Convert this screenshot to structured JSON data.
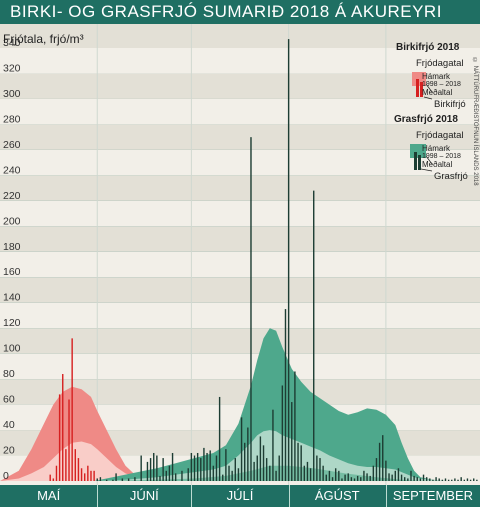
{
  "title": "BIRKI- OG GRASFRJÓ SUMARIÐ 2018 Á AKUREYRI",
  "copyright": "© NÁTTÚRUFRÆÐISTOFNUN ÍSLANDS 2018",
  "colors": {
    "birch": "#ef8a86",
    "birch_bar": "#d62020",
    "grass": "#4ea88c",
    "grass_bar": "#1d3d33",
    "band_light": "#f2efe8",
    "band_dark": "#e3e0d6",
    "frame": "#1f6f63"
  },
  "months": [
    "MAÍ",
    "JÚNÍ",
    "JÚLÍ",
    "ÁGÚST",
    "SEPTEMBER"
  ],
  "legend": {
    "birch_title": "Birkifrjó 2018",
    "birch_subtitle": "Frjódagatal",
    "birch_max": "Hámark",
    "birch_years": "1998 – 2018",
    "birch_mean": "Meðaltal",
    "birch_series": "Birkifrjó",
    "grass_title": "Grasfrjó 2018",
    "grass_subtitle": "Frjódagatal",
    "grass_max": "Hámark",
    "grass_years": "1998 – 2018",
    "grass_mean": "Meðaltal",
    "grass_series": "Grasfrjó"
  },
  "chart_data": {
    "type": "bar",
    "ylabel": "Frjótala, frjó/m³",
    "ylim": [
      0,
      350
    ],
    "yticks": [
      0,
      20,
      40,
      60,
      80,
      100,
      120,
      140,
      160,
      180,
      200,
      220,
      240,
      260,
      280,
      300,
      320,
      340
    ],
    "x_days": [
      0,
      153
    ],
    "month_starts": [
      0,
      31,
      61,
      92,
      123,
      153
    ],
    "birch_calendar": {
      "max_days": [
        0,
        6,
        10,
        14,
        17,
        20,
        23,
        26,
        29,
        31,
        34,
        37,
        40,
        43,
        46,
        49,
        52
      ],
      "max": [
        0,
        8,
        25,
        45,
        60,
        70,
        74,
        72,
        66,
        55,
        40,
        25,
        12,
        5,
        2,
        1,
        0
      ],
      "mean_days": [
        0,
        6,
        10,
        14,
        17,
        20,
        23,
        26,
        29,
        31,
        34,
        37,
        40,
        43,
        46,
        49,
        52
      ],
      "mean": [
        0,
        2,
        6,
        11,
        18,
        25,
        30,
        31,
        29,
        25,
        18,
        11,
        6,
        3,
        1,
        0,
        0
      ]
    },
    "grass_calendar": {
      "max_days": [
        30,
        40,
        50,
        56,
        62,
        68,
        72,
        76,
        80,
        82,
        84,
        86,
        88,
        90,
        93,
        96,
        99,
        102,
        105,
        108,
        111,
        114,
        117,
        120,
        123,
        126,
        128,
        130,
        132,
        134,
        138,
        142
      ],
      "max": [
        0,
        5,
        10,
        14,
        18,
        22,
        28,
        45,
        75,
        95,
        112,
        120,
        118,
        105,
        88,
        78,
        70,
        65,
        60,
        55,
        52,
        54,
        57,
        56,
        52,
        44,
        30,
        18,
        8,
        3,
        1,
        0
      ],
      "mean_days": [
        30,
        40,
        50,
        56,
        62,
        68,
        72,
        76,
        80,
        82,
        84,
        86,
        88,
        90,
        93,
        96,
        99,
        102,
        105,
        108,
        111,
        114,
        117,
        120,
        123,
        126,
        128,
        130,
        132,
        134,
        138,
        142
      ],
      "mean": [
        0,
        1,
        3,
        5,
        7,
        9,
        12,
        20,
        30,
        36,
        39,
        40,
        39,
        36,
        33,
        30,
        27,
        24,
        20,
        17,
        14,
        12,
        11,
        11,
        10,
        9,
        7,
        5,
        3,
        2,
        1,
        0
      ],
      "min_band_days": [
        30,
        50,
        62,
        72,
        80,
        86,
        92,
        100,
        110,
        120,
        128,
        134,
        142
      ],
      "min_band": [
        0,
        1,
        2,
        4,
        8,
        12,
        12,
        10,
        6,
        3,
        1,
        0,
        0
      ]
    },
    "series": [
      {
        "name": "Birkifrjó",
        "days": [
          16,
          17,
          18,
          19,
          20,
          21,
          22,
          23,
          24,
          25,
          26,
          27,
          28,
          29,
          30
        ],
        "values": [
          5,
          2,
          12,
          68,
          84,
          25,
          64,
          112,
          25,
          18,
          10,
          6,
          12,
          8,
          8
        ]
      },
      {
        "name": "Grasfrjó",
        "days": [
          31,
          32,
          34,
          36,
          37,
          39,
          41,
          43,
          45,
          47,
          48,
          49,
          50,
          51,
          52,
          53,
          54,
          55,
          56,
          58,
          60,
          61,
          62,
          63,
          64,
          65,
          66,
          67,
          68,
          69,
          70,
          71,
          72,
          73,
          74,
          75,
          76,
          77,
          78,
          79,
          80,
          81,
          82,
          83,
          84,
          85,
          86,
          87,
          88,
          89,
          90,
          91,
          92,
          93,
          94,
          95,
          96,
          97,
          98,
          99,
          100,
          101,
          102,
          103,
          104,
          105,
          106,
          107,
          108,
          109,
          110,
          111,
          112,
          113,
          114,
          115,
          116,
          117,
          118,
          119,
          120,
          121,
          122,
          123,
          124,
          125,
          126,
          127,
          128,
          129,
          130,
          131,
          132,
          133,
          134,
          135,
          136,
          137,
          138,
          139,
          140,
          141,
          142,
          143,
          144,
          145,
          146,
          147,
          148,
          149,
          150,
          151,
          152
        ],
        "values": [
          2,
          3,
          1,
          1,
          6,
          2,
          2,
          3,
          20,
          15,
          18,
          22,
          20,
          4,
          18,
          8,
          12,
          22,
          6,
          8,
          10,
          22,
          20,
          22,
          18,
          26,
          22,
          24,
          12,
          20,
          66,
          5,
          25,
          12,
          8,
          18,
          10,
          50,
          30,
          42,
          270,
          15,
          20,
          35,
          28,
          18,
          12,
          56,
          8,
          20,
          75,
          135,
          347,
          62,
          86,
          30,
          28,
          12,
          15,
          10,
          228,
          20,
          18,
          12,
          5,
          8,
          3,
          10,
          8,
          2,
          5,
          6,
          3,
          2,
          4,
          3,
          8,
          6,
          4,
          12,
          18,
          30,
          36,
          16,
          6,
          5,
          8,
          10,
          5,
          3,
          2,
          8,
          4,
          3,
          2,
          5,
          3,
          2,
          1,
          3,
          2,
          1,
          2,
          1,
          1,
          2,
          1,
          3,
          1,
          2,
          1,
          2,
          1
        ]
      }
    ]
  }
}
